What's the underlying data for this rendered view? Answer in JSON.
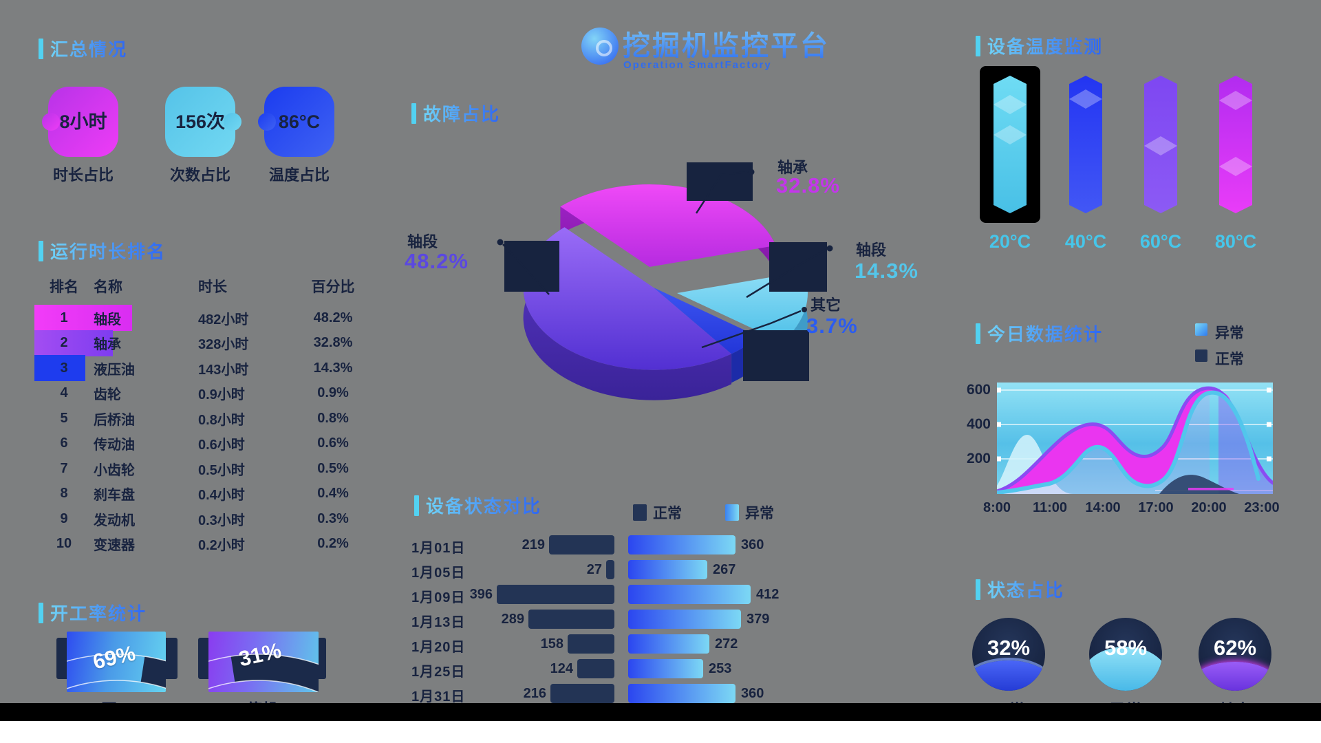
{
  "header": {
    "title": "挖掘机监控平台",
    "subtitle": "Operation SmartFactory"
  },
  "colors": {
    "accent_cyan": "#4fc8ea",
    "accent_blue": "#2e66f2",
    "magenta": "#e83cf4",
    "purple": "#8a4cf0",
    "navy": "#18233f",
    "panel_cyan": "#55c0e8"
  },
  "summary": {
    "title": "汇总情况",
    "cards": [
      {
        "value": "8小时",
        "label": "时长占比",
        "color": "#e83cf4"
      },
      {
        "value": "156次",
        "label": "次数占比",
        "color": "#5bc8ea"
      },
      {
        "value": "86°C",
        "label": "温度占比",
        "color": "#2b46f0"
      }
    ]
  },
  "ranking": {
    "title": "运行时长排名",
    "headers": [
      "排名",
      "名称",
      "时长",
      "百分比"
    ],
    "rows": [
      {
        "rank": "1",
        "name": "轴段",
        "duration": "482小时",
        "percent": "48.2%"
      },
      {
        "rank": "2",
        "name": "轴承",
        "duration": "328小时",
        "percent": "32.8%"
      },
      {
        "rank": "3",
        "name": "液压油",
        "duration": "143小时",
        "percent": "14.3%"
      },
      {
        "rank": "4",
        "name": "齿轮",
        "duration": "0.9小时",
        "percent": "0.9%"
      },
      {
        "rank": "5",
        "name": "后桥油",
        "duration": "0.8小时",
        "percent": "0.8%"
      },
      {
        "rank": "6",
        "name": "传动油",
        "duration": "0.6小时",
        "percent": "0.6%"
      },
      {
        "rank": "7",
        "name": "小齿轮",
        "duration": "0.5小时",
        "percent": "0.5%"
      },
      {
        "rank": "8",
        "name": "刹车盘",
        "duration": "0.4小时",
        "percent": "0.4%"
      },
      {
        "rank": "9",
        "name": "发动机",
        "duration": "0.3小时",
        "percent": "0.3%"
      },
      {
        "rank": "10",
        "name": "变速器",
        "duration": "0.2小时",
        "percent": "0.2%"
      }
    ]
  },
  "gauges": {
    "title": "开工率统计",
    "items": [
      {
        "value": 69,
        "display": "69%",
        "label": "开工"
      },
      {
        "value": 31,
        "display": "31%",
        "label": "停机"
      }
    ]
  },
  "pie": {
    "title": "故障占比",
    "slices": [
      {
        "name": "轴承",
        "percent": "32.8%",
        "color": "#c435ec"
      },
      {
        "name": "轴段",
        "percent": "48.2%",
        "color": "#5b48e0"
      },
      {
        "name": "轴段",
        "percent": "14.3%",
        "color": "#54c6ea"
      },
      {
        "name": "其它",
        "percent": "3.7%",
        "color": "#2b5cf0"
      }
    ]
  },
  "comparison": {
    "title": "设备状态对比",
    "legend": [
      {
        "label": "正常"
      },
      {
        "label": "异常"
      }
    ],
    "rows": [
      {
        "date": "1月01日",
        "normal": 219,
        "abnormal": 360
      },
      {
        "date": "1月05日",
        "normal": 27,
        "abnormal": 267
      },
      {
        "date": "1月09日",
        "normal": 396,
        "abnormal": 412
      },
      {
        "date": "1月13日",
        "normal": 289,
        "abnormal": 379
      },
      {
        "date": "1月20日",
        "normal": 158,
        "abnormal": 272
      },
      {
        "date": "1月25日",
        "normal": 124,
        "abnormal": 253
      },
      {
        "date": "1月31日",
        "normal": 216,
        "abnormal": 360
      }
    ]
  },
  "temperature": {
    "title": "设备温度监测",
    "bars": [
      {
        "label": "20°C",
        "selected": true
      },
      {
        "label": "40°C",
        "selected": false
      },
      {
        "label": "60°C",
        "selected": false
      },
      {
        "label": "80°C",
        "selected": false
      }
    ]
  },
  "trend": {
    "title": "今日数据统计",
    "legend": [
      {
        "label": "异常"
      },
      {
        "label": "正常"
      }
    ],
    "y_ticks": [
      "600",
      "400",
      "200"
    ],
    "x_ticks": [
      "8:00",
      "11:00",
      "14:00",
      "17:00",
      "20:00",
      "23:00"
    ]
  },
  "status": {
    "title": "状态占比",
    "items": [
      {
        "value": "32%",
        "label": "正常"
      },
      {
        "value": "58%",
        "label": "异常"
      },
      {
        "value": "62%",
        "label": "其它"
      }
    ]
  },
  "chart_data": [
    {
      "type": "pie",
      "title": "故障占比",
      "labels": [
        "轴段",
        "轴承",
        "轴段",
        "其它"
      ],
      "values": [
        48.2,
        32.8,
        14.3,
        3.7
      ]
    },
    {
      "type": "bar",
      "title": "设备状态对比",
      "categories": [
        "1月01日",
        "1月05日",
        "1月09日",
        "1月13日",
        "1月20日",
        "1月25日",
        "1月31日"
      ],
      "series": [
        {
          "name": "正常",
          "values": [
            219,
            27,
            396,
            289,
            158,
            124,
            216
          ]
        },
        {
          "name": "异常",
          "values": [
            360,
            267,
            412,
            379,
            272,
            253,
            360
          ]
        }
      ]
    },
    {
      "type": "area",
      "title": "今日数据统计",
      "x": [
        "8:00",
        "11:00",
        "14:00",
        "17:00",
        "20:00",
        "23:00"
      ],
      "series": [
        {
          "name": "异常",
          "values": [
            20,
            390,
            250,
            560,
            420,
            60
          ]
        },
        {
          "name": "正常",
          "values": [
            10,
            180,
            90,
            520,
            150,
            30
          ]
        }
      ],
      "ylim": [
        0,
        600
      ]
    }
  ]
}
